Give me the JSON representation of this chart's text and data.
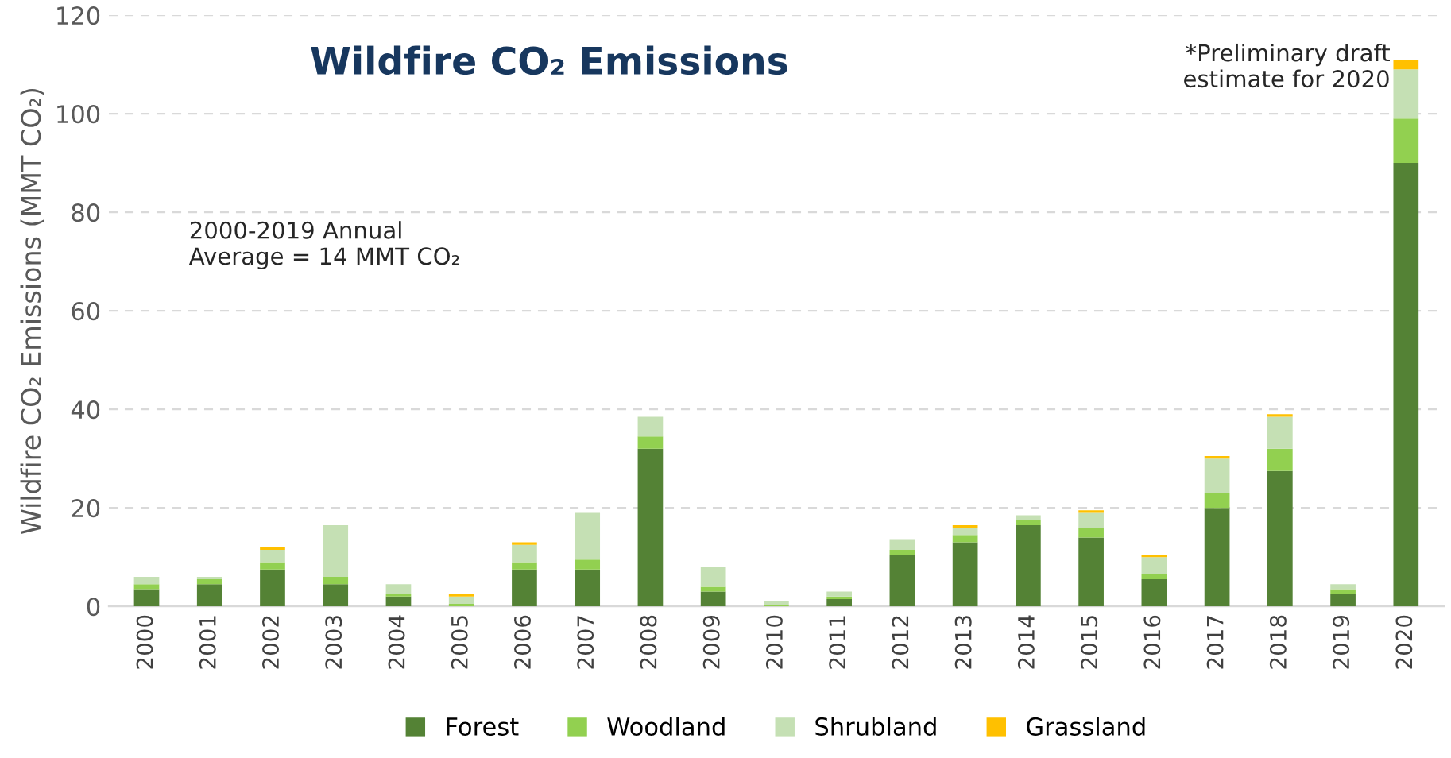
{
  "chart_data": {
    "type": "bar",
    "title": "Wildfire CO₂ Emissions",
    "ylabel": "Wildfire CO₂ Emissions (MMT CO₂)",
    "categories": [
      "2000",
      "2001",
      "2002",
      "2003",
      "2004",
      "2005",
      "2006",
      "2007",
      "2008",
      "2009",
      "2010",
      "2011",
      "2012",
      "2013",
      "2014",
      "2015",
      "2016",
      "2017",
      "2018",
      "2019",
      "2020"
    ],
    "stacked": true,
    "series": [
      {
        "name": "Forest",
        "color": "#548235",
        "values": [
          3.5,
          4.5,
          7.5,
          4.5,
          2,
          0,
          7.5,
          7.5,
          32,
          3,
          0,
          1.5,
          10.5,
          13,
          16.5,
          14,
          5.5,
          20,
          27.5,
          2.5,
          90
        ]
      },
      {
        "name": "Woodland",
        "color": "#92d050",
        "values": [
          1,
          1,
          1.5,
          1.5,
          0.5,
          0.5,
          1.5,
          2,
          2.5,
          1,
          0.2,
          0.5,
          1,
          1.5,
          1,
          2,
          1,
          3,
          4.5,
          1,
          9
        ]
      },
      {
        "name": "Shrubland",
        "color": "#c5e0b4",
        "values": [
          1.5,
          0.5,
          2.5,
          10.5,
          2,
          1.5,
          3.5,
          9.5,
          4,
          4,
          0.8,
          1,
          2,
          1.5,
          1,
          3,
          3.5,
          7,
          6.5,
          1,
          10
        ]
      },
      {
        "name": "Grassland",
        "color": "#ffc000",
        "values": [
          0,
          0,
          0.5,
          0,
          0,
          0.5,
          0.5,
          0,
          0,
          0,
          0,
          0,
          0,
          0.5,
          0,
          0.5,
          0.5,
          0.5,
          0.5,
          0,
          2
        ]
      }
    ],
    "ylim": [
      0,
      120
    ],
    "yticks": [
      0,
      20,
      40,
      60,
      80,
      100,
      120
    ],
    "grid": "y",
    "legend": "bottom",
    "annotations": [
      "2000-2019 Annual\nAverage = 14 MMT CO₂",
      "*Preliminary draft\nestimate for 2020"
    ]
  }
}
